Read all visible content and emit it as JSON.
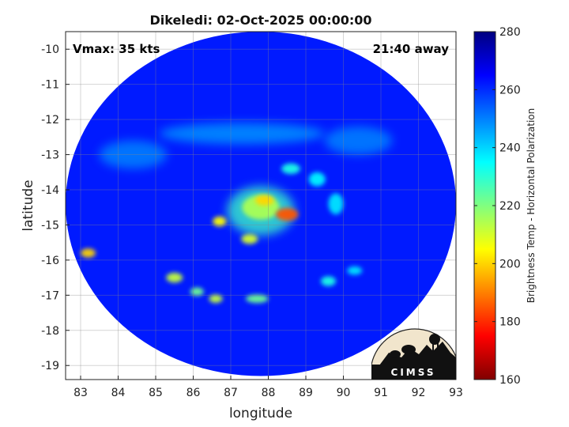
{
  "chart_data": {
    "type": "heatmap",
    "title": "Dikeledi: 02-Oct-2025 00:00:00",
    "xlabel": "longitude",
    "ylabel": "latitude",
    "xlim": [
      82.6,
      93
    ],
    "ylim": [
      -19.4,
      -9.5
    ],
    "xticks": [
      "83",
      "84",
      "85",
      "86",
      "87",
      "88",
      "89",
      "90",
      "91",
      "92",
      "93"
    ],
    "yticks": [
      "-10",
      "-11",
      "-12",
      "-13",
      "-14",
      "-15",
      "-16",
      "-17",
      "-18",
      "-19"
    ],
    "grid": true,
    "swath": {
      "center_lon": 87.8,
      "center_lat": -14.4,
      "radius_lon": 5.2,
      "radius_lat": 4.9
    },
    "colorbar": {
      "label": "Brightness Temp - Horizontal Polarization",
      "min": 160,
      "max": 280,
      "ticks": [
        "160",
        "180",
        "200",
        "220",
        "240",
        "260",
        "280"
      ],
      "colormap": [
        "#800000",
        "#ff0000",
        "#ff8000",
        "#ffff00",
        "#80ff80",
        "#00ffff",
        "#0080ff",
        "#0000ff",
        "#000080"
      ]
    },
    "background_k": 262,
    "features": [
      {
        "name": "eye-ring",
        "lon": 87.8,
        "lat": -14.6,
        "rx": 0.9,
        "ry": 0.7,
        "value": 228
      },
      {
        "name": "inner-core",
        "lon": 87.8,
        "lat": -14.5,
        "rx": 0.5,
        "ry": 0.35,
        "value": 215
      },
      {
        "name": "eyewall-hot-east",
        "lon": 88.5,
        "lat": -14.7,
        "rx": 0.3,
        "ry": 0.18,
        "value": 185
      },
      {
        "name": "eyewall-hot-north",
        "lon": 87.9,
        "lat": -14.3,
        "rx": 0.25,
        "ry": 0.15,
        "value": 200
      },
      {
        "name": "cell-west",
        "lon": 86.7,
        "lat": -14.9,
        "rx": 0.18,
        "ry": 0.14,
        "value": 205
      },
      {
        "name": "cell-south",
        "lon": 87.5,
        "lat": -15.4,
        "rx": 0.22,
        "ry": 0.14,
        "value": 210
      },
      {
        "name": "band-ne-1",
        "lon": 88.6,
        "lat": -13.4,
        "rx": 0.25,
        "ry": 0.15,
        "value": 232
      },
      {
        "name": "band-ne-2",
        "lon": 89.3,
        "lat": -13.7,
        "rx": 0.22,
        "ry": 0.2,
        "value": 236
      },
      {
        "name": "band-e",
        "lon": 89.8,
        "lat": -14.4,
        "rx": 0.2,
        "ry": 0.3,
        "value": 238
      },
      {
        "name": "band-s-1",
        "lon": 85.5,
        "lat": -16.5,
        "rx": 0.22,
        "ry": 0.14,
        "value": 212
      },
      {
        "name": "band-s-2",
        "lon": 86.1,
        "lat": -16.9,
        "rx": 0.18,
        "ry": 0.12,
        "value": 222
      },
      {
        "name": "band-s-3",
        "lon": 86.6,
        "lat": -17.1,
        "rx": 0.18,
        "ry": 0.12,
        "value": 212
      },
      {
        "name": "band-s-4",
        "lon": 87.7,
        "lat": -17.1,
        "rx": 0.3,
        "ry": 0.12,
        "value": 222
      },
      {
        "name": "band-se-1",
        "lon": 89.6,
        "lat": -16.6,
        "rx": 0.2,
        "ry": 0.14,
        "value": 232
      },
      {
        "name": "band-se-2",
        "lon": 90.3,
        "lat": -16.3,
        "rx": 0.2,
        "ry": 0.12,
        "value": 238
      },
      {
        "name": "cell-far-west",
        "lon": 83.2,
        "lat": -15.8,
        "rx": 0.2,
        "ry": 0.13,
        "value": 200
      },
      {
        "name": "north-band",
        "lon": 87.3,
        "lat": -12.4,
        "rx": 2.2,
        "ry": 0.3,
        "value": 246
      },
      {
        "name": "ne-band",
        "lon": 90.4,
        "lat": -12.6,
        "rx": 0.9,
        "ry": 0.4,
        "value": 248
      },
      {
        "name": "west-band",
        "lon": 84.4,
        "lat": -13.0,
        "rx": 0.9,
        "ry": 0.4,
        "value": 248
      }
    ],
    "annotations": {
      "vmax": "Vmax: 35 kts",
      "time_away": "21:40 away"
    }
  },
  "logo": {
    "text": "CIMSS"
  }
}
